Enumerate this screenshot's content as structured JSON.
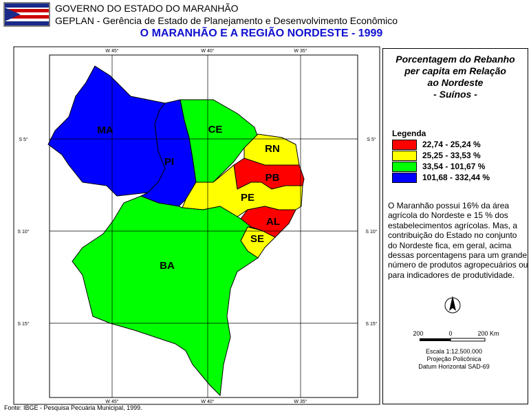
{
  "header": {
    "org": "GOVERNO DO ESTADO DO MARANHÃO",
    "dept": "GEPLAN - Gerência de Estado de Planejamento e Desenvolvimento Econômico",
    "title": "O MARANHÃO E A REGIÃO NORDESTE - 1999"
  },
  "map": {
    "longitudes": [
      "W 45°",
      "W 40°",
      "W 35°"
    ],
    "latitudes": [
      "S 5°",
      "S 10°",
      "S 15°"
    ],
    "states": [
      {
        "label": "MA",
        "fill": "#0000ff"
      },
      {
        "label": "PI",
        "fill": "#0000ff"
      },
      {
        "label": "CE",
        "fill": "#00ff00"
      },
      {
        "label": "RN",
        "fill": "#ffff00"
      },
      {
        "label": "PB",
        "fill": "#ff0000"
      },
      {
        "label": "PE",
        "fill": "#ffff00"
      },
      {
        "label": "AL",
        "fill": "#ff0000"
      },
      {
        "label": "SE",
        "fill": "#ffff00"
      },
      {
        "label": "BA",
        "fill": "#00ff00"
      }
    ]
  },
  "panel": {
    "title": [
      "Porcentagem do Rebanho",
      "per capita em Relação",
      "ao Nordeste",
      "- Suínos -"
    ],
    "legend_title": "Legenda",
    "legend": [
      {
        "label": "22,74 - 25,24 %",
        "color": "#ff0000"
      },
      {
        "label": "25,25 - 33,53 %",
        "color": "#ffff00"
      },
      {
        "label": "33,54 - 101,67 %",
        "color": "#00ff00"
      },
      {
        "label": "101,68 - 332,44 %",
        "color": "#0000ff"
      }
    ],
    "text": "O Maranhão possui 16% da área agrícola do Nordeste e 15 % dos estabelecimentos agrícolas. Mas, a contribuição do Estado no conjunto do Nordeste fica, em geral, acima dessas porcentagens para um grande número de produtos agropecuários ou para indicadores de produtividade.",
    "north": "N",
    "scale_labels": [
      "200",
      "0",
      "200 Km"
    ],
    "scale": "Escala 1:12.500.000",
    "projection": "Projeção Policônica",
    "datum": "Datum Horizontal SAD-69"
  },
  "footer": "Fonte: IBGE - Pesquisa Pecuária Municipal, 1999."
}
